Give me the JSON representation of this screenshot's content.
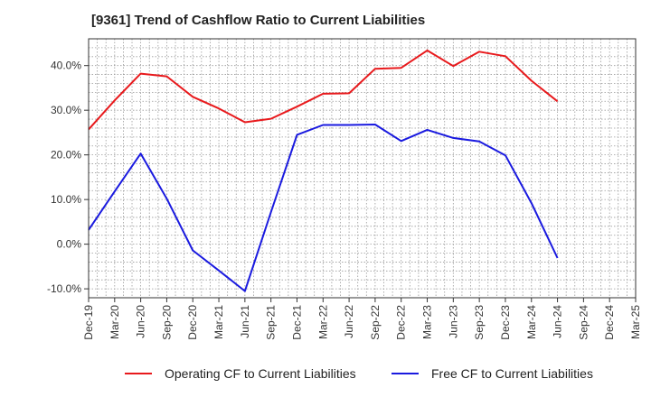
{
  "chart_data": {
    "type": "line",
    "title": "[9361]  Trend of Cashflow Ratio to Current Liabilities",
    "xlabel": "",
    "ylabel": "",
    "categories": [
      "Dec-19",
      "Mar-20",
      "Jun-20",
      "Sep-20",
      "Dec-20",
      "Mar-21",
      "Jun-21",
      "Sep-21",
      "Dec-21",
      "Mar-22",
      "Jun-22",
      "Sep-22",
      "Dec-22",
      "Mar-23",
      "Jun-23",
      "Sep-23",
      "Dec-23",
      "Mar-24",
      "Jun-24",
      "Sep-24",
      "Dec-24",
      "Mar-25"
    ],
    "ylim": [
      -12,
      46
    ],
    "yticks": [
      -10,
      0,
      10,
      20,
      30,
      40
    ],
    "ytick_labels": [
      "-10.0%",
      "0.0%",
      "10.0%",
      "20.0%",
      "30.0%",
      "40.0%"
    ],
    "grid": true,
    "legend_position": "bottom",
    "series": [
      {
        "name": "Operating CF to Current Liabilities",
        "color": "#e8191c",
        "values": [
          25.7,
          32.2,
          38.2,
          37.6,
          33.0,
          30.4,
          27.3,
          28.1,
          30.8,
          33.7,
          33.8,
          39.3,
          39.5,
          43.4,
          39.9,
          43.1,
          42.1,
          36.6,
          32.0,
          null,
          null,
          null
        ]
      },
      {
        "name": "Free CF to Current Liabilities",
        "color": "#1a1adf",
        "values": [
          3.2,
          11.8,
          20.3,
          10.2,
          -1.4,
          -5.9,
          -10.5,
          7.2,
          24.5,
          26.7,
          26.7,
          26.8,
          23.1,
          25.6,
          23.8,
          23.0,
          19.9,
          9.2,
          -3.1,
          null,
          null,
          null
        ]
      }
    ]
  }
}
